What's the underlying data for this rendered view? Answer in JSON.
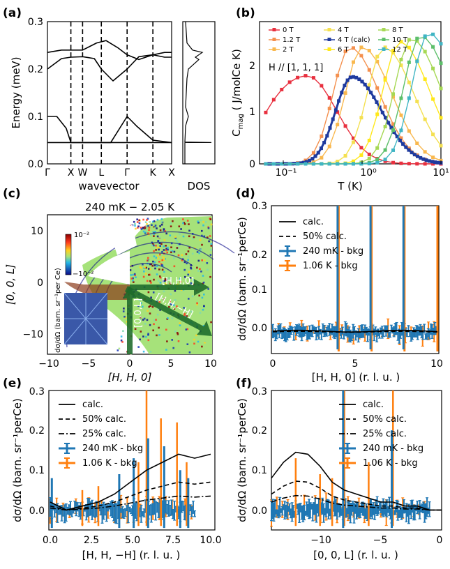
{
  "panels": {
    "a": {
      "label": "(a)",
      "ylabel": "Energy (meV)",
      "xlabel": "wavevector",
      "dos_label": "DOS",
      "q_points": [
        "Γ",
        "X",
        "W",
        "L",
        "Γ",
        "K",
        "X"
      ],
      "yticks": [
        "0.0",
        "0.1",
        "0.2",
        "0.3"
      ]
    },
    "b": {
      "label": "(b)",
      "ylabel_main": "C",
      "ylabel_sub": "mag",
      "ylabel_rest": " ( J/molCe K)",
      "xlabel": "T (K)",
      "annotation": "H // [1, 1, 1]",
      "xticks": [
        "10⁻¹",
        "10⁰",
        "10¹"
      ],
      "yticks": [
        "0",
        "1",
        "2"
      ]
    },
    "c": {
      "label": "(c)",
      "title": "240 mK − 2.05 K",
      "xlabel": "[H, H, 0]",
      "ylabel": "[0, 0, L]",
      "cbar_top": "10⁻²",
      "cbar_bottom": "−10⁻²",
      "cbar_label": "dσ/dΩ (barn. sr⁻¹per Ce)",
      "cut_labels": [
        "[H,H,0]",
        "[H,H,−H]",
        "[0,0,L]"
      ],
      "xticks": [
        "−10",
        "−5",
        "0",
        "5",
        "10"
      ],
      "yticks": [
        "−10",
        "0",
        "10"
      ]
    },
    "d": {
      "label": "(d)",
      "xlabel": "[H, H, 0] (r. l. u. )",
      "ylabel": "dσ/dΩ (barn. sr⁻¹perCe)",
      "legend": [
        "calc.",
        "50% calc.",
        "240 mK - bkg",
        "1.06 K - bkg"
      ],
      "xticks": [
        "0",
        "5",
        "10"
      ],
      "yticks": [
        "0.0",
        "0.1",
        "0.2",
        "0.3"
      ]
    },
    "e": {
      "label": "(e)",
      "xlabel": "[H, H, −H] (r. l. u. )",
      "ylabel": "dσ/dΩ (barn. sr⁻¹perCe)",
      "legend": [
        "calc.",
        "50% calc.",
        "25% calc.",
        "240 mK - bkg",
        "1.06 K - bkg"
      ],
      "xticks": [
        "0.0",
        "2.5",
        "5.0",
        "7.5",
        "10.0"
      ],
      "yticks": [
        "0.0",
        "0.1",
        "0.2",
        "0.3"
      ]
    },
    "f": {
      "label": "(f)",
      "xlabel": "[0, 0, L] (r. l. u. )",
      "ylabel": "dσ/dΩ (barn. sr⁻¹perCe)",
      "legend": [
        "calc.",
        "50% calc.",
        "25% calc.",
        "240 mK - bkg",
        "1.06 K - bkg"
      ],
      "xticks": [
        "−10",
        "−5",
        "0"
      ],
      "yticks": [
        "0.0",
        "0.1",
        "0.2",
        "0.3"
      ]
    }
  },
  "colors": {
    "blue": "#1f77b4",
    "orange": "#ff7f0e",
    "calc_navy": "#1f3a9e"
  },
  "chart_data": [
    {
      "panel": "a",
      "type": "line",
      "x_points": [
        "Γ",
        "X",
        "W",
        "L",
        "Γ",
        "K",
        "X"
      ],
      "ylim": [
        0,
        0.3
      ],
      "ylabel": "Energy (meV)",
      "xlabel": "wavevector",
      "series": [
        {
          "x": [
            0,
            1,
            1.5,
            2.3,
            3.4,
            4.5,
            5.3
          ],
          "y": [
            0.045,
            0.045,
            0.045,
            0.045,
            0.045,
            0.045,
            0.045
          ]
        },
        {
          "x": [
            0,
            0.4,
            0.8,
            1,
            1.5,
            1.8,
            2.3,
            2.7,
            3.4,
            3.8,
            4.5,
            5.3
          ],
          "y": [
            0.1,
            0.1,
            0.075,
            0.045,
            0.045,
            0.045,
            0.045,
            0.045,
            0.1,
            0.08,
            0.05,
            0.045
          ]
        },
        {
          "x": [
            0,
            0.6,
            1,
            1.5,
            2.0,
            2.3,
            2.8,
            3.4,
            3.9,
            4.5,
            5.0,
            5.3
          ],
          "y": [
            0.2,
            0.222,
            0.225,
            0.226,
            0.222,
            0.2,
            0.175,
            0.2,
            0.226,
            0.23,
            0.225,
            0.225
          ]
        },
        {
          "x": [
            0,
            0.6,
            1,
            1.5,
            2.1,
            2.5,
            3.0,
            3.4,
            3.9,
            4.5,
            5.0,
            5.3
          ],
          "y": [
            0.235,
            0.24,
            0.24,
            0.24,
            0.255,
            0.26,
            0.245,
            0.23,
            0.22,
            0.23,
            0.235,
            0.235
          ]
        }
      ]
    },
    {
      "panel": "b",
      "type": "line",
      "xscale": "log",
      "xlim": [
        0.05,
        10
      ],
      "ylim": [
        0,
        2.5
      ],
      "xlabel": "T (K)",
      "series": [
        {
          "name": "0 T",
          "color": "#e8303f",
          "peak_T": 0.2,
          "peak_C": 1.55
        },
        {
          "name": "1.2 T",
          "color": "#f4904e",
          "peak_T": 0.7,
          "peak_C": 2.05
        },
        {
          "name": "2 T",
          "color": "#f9b84e",
          "peak_T": 1.0,
          "peak_C": 2.05
        },
        {
          "name": "4 T",
          "color": "#f4e050",
          "peak_T": 1.9,
          "peak_C": 2.05
        },
        {
          "name": "4 T (calc)",
          "color": "#1f3a9e",
          "peak_T": 0.75,
          "peak_C": 1.53
        },
        {
          "name": "6 T",
          "color": "#ffe81a",
          "peak_T": 3.0,
          "peak_C": 2.15
        },
        {
          "name": "8 T",
          "color": "#a6d854",
          "peak_T": 4.2,
          "peak_C": 2.2
        },
        {
          "name": "10 T",
          "color": "#5cbf6a",
          "peak_T": 5.5,
          "peak_C": 2.25
        },
        {
          "name": "12 T",
          "color": "#40b5c4",
          "peak_T": 7.0,
          "peak_C": 2.3
        }
      ]
    },
    {
      "panel": "d",
      "type": "line",
      "xlim": [
        0,
        10
      ],
      "ylim": [
        -0.05,
        0.3
      ],
      "peaks_x": [
        4,
        6,
        8,
        10
      ]
    },
    {
      "panel": "e",
      "type": "line",
      "xlim": [
        0,
        10
      ],
      "ylim": [
        -0.05,
        0.3
      ],
      "calc": {
        "x": [
          0,
          1,
          2,
          3,
          4,
          5,
          6,
          7,
          8,
          9,
          10
        ],
        "y": [
          0.02,
          0.0,
          0.01,
          0.02,
          0.04,
          0.07,
          0.1,
          0.12,
          0.14,
          0.13,
          0.14
        ]
      }
    },
    {
      "panel": "f",
      "type": "line",
      "xlim": [
        -14,
        0
      ],
      "ylim": [
        -0.05,
        0.3
      ],
      "calc": {
        "x": [
          -14,
          -13,
          -12,
          -11,
          -10,
          -9,
          -8,
          -7,
          -6,
          -5,
          -4,
          -3,
          -2,
          -1,
          0
        ],
        "y": [
          0.08,
          0.12,
          0.145,
          0.14,
          0.11,
          0.07,
          0.05,
          0.04,
          0.03,
          0.02,
          0.02,
          0.01,
          0.01,
          0.0,
          0.0
        ]
      }
    }
  ]
}
